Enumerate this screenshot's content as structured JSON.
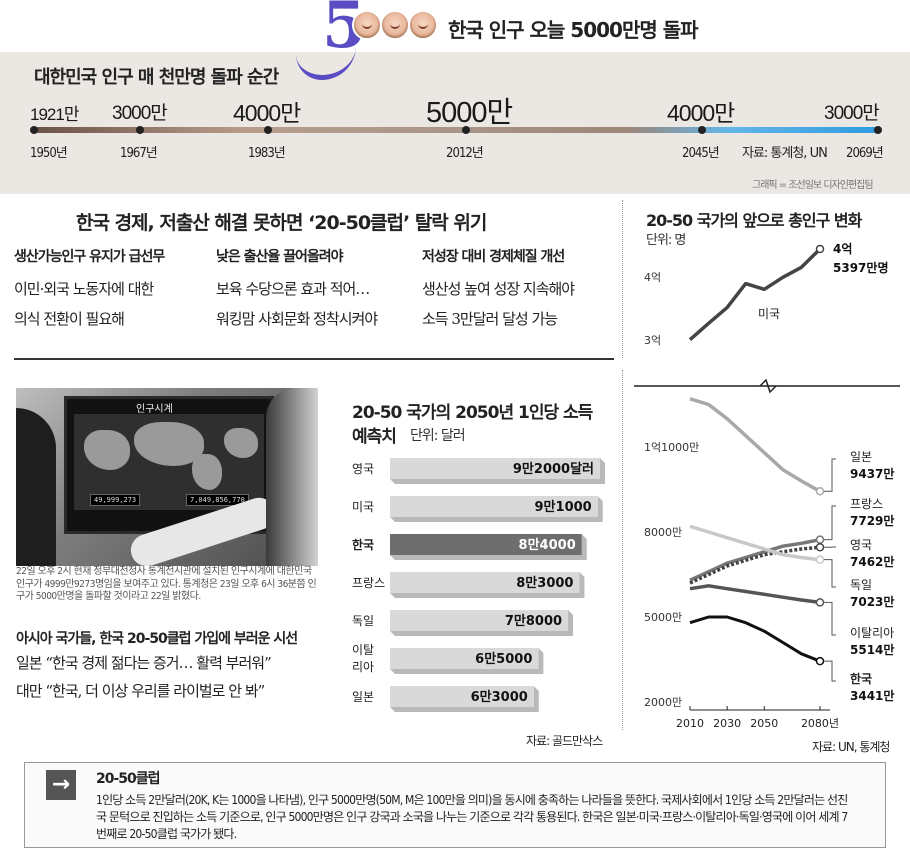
{
  "header": {
    "logo_digit": "5",
    "title": "한국 인구 오늘 5000만명 돌파"
  },
  "timeline": {
    "title": "대한민국 인구 매 천만명 돌파 순간",
    "points": [
      {
        "value": "1921만",
        "year": "1950년"
      },
      {
        "value": "3000만",
        "year": "1967년"
      },
      {
        "value": "4000만",
        "year": "1983년"
      },
      {
        "value": "5000만",
        "year": "2012년"
      },
      {
        "value": "4000만",
        "year": "2045년"
      },
      {
        "value": "3000만",
        "year": "2069년"
      }
    ],
    "source": "자료: 통계청, UN",
    "credit": "그래픽 = 조선일보 디자인편집팀"
  },
  "crisis": {
    "title": "한국 경제, 저출산 해결 못하면 ‘20-50클럽’ 탈락 위기",
    "columns": [
      {
        "head": "생산가능인구 유지가 급선무",
        "lines": [
          "이민·외국 노동자에 대한",
          "의식 전환이 필요해"
        ]
      },
      {
        "head": "낮은 출산율 끌어올려야",
        "lines": [
          "보육 수당으론 효과 적어…",
          "워킹맘 사회문화 정착시켜야"
        ]
      },
      {
        "head": "저성장 대비 경제체질 개선",
        "lines": [
          "생산성 높여 성장 지속해야",
          "소득 3만달러 달성 가능"
        ]
      }
    ]
  },
  "photo": {
    "screen_title": "인구시계",
    "counter_left": "49,999,273",
    "counter_right": "7,049,856,770",
    "caption": "22일 오후 2시 현재 정부대전청사 통계전시관에 설치된 인구시계에 대한민국 인구가 4999만9273명임을 보여주고 있다. 통계청은 23일 오후 6시 36분쯤 인구가 5000만명을 돌파할 것이라고 22일 밝혔다."
  },
  "asia": {
    "title": "아시아 국가들, 한국 20-50클럽 가입에 부러운 시선",
    "quotes": [
      "일본 “한국 경제 젊다는 증거… 활력 부러워”",
      "대만 “한국, 더 이상 우리를 라이벌로 안 봐”"
    ]
  },
  "bar_chart": {
    "title_line1": "20-50 국가의 2050년 1인당 소득",
    "title_line2": "예측치",
    "unit": "단위: 달러",
    "source": "자료: 골드만삭스",
    "highlight_color": "#6e6e6e",
    "bar_color": "#d9d9d9"
  },
  "line_chart": {
    "title": "20-50 국가의 앞으로 총인구 변화",
    "unit": "단위: 명",
    "source": "자료: UN, 통계청",
    "us_label": "미국",
    "us_end_label_1": "4억",
    "us_end_label_2": "5397만명",
    "tick_top": [
      "4억",
      "3억"
    ],
    "tick_bottom": [
      "1억1000만",
      "8000만",
      "5000만",
      "2000만"
    ],
    "x_ticks": [
      "2010",
      "2030",
      "2050",
      "2080년"
    ],
    "end_labels": [
      {
        "name": "일본",
        "value": "9437만"
      },
      {
        "name": "프랑스",
        "value": "7729만"
      },
      {
        "name": "영국",
        "value": "7462만"
      },
      {
        "name": "독일",
        "value": "7023만"
      },
      {
        "name": "이탈리아",
        "value": "5514만"
      },
      {
        "name": "한국",
        "value": "3441만"
      }
    ]
  },
  "chart_data": [
    {
      "type": "bar",
      "title": "20-50 국가의 2050년 1인당 소득 예측치",
      "ylabel": "단위: 달러",
      "categories": [
        "영국",
        "미국",
        "한국",
        "프랑스",
        "독일",
        "이탈리아",
        "일본"
      ],
      "values": [
        92000,
        91000,
        84000,
        83000,
        78000,
        65000,
        63000
      ],
      "value_labels": [
        "9만2000달러",
        "9만1000",
        "8만4000",
        "8만3000",
        "7만8000",
        "6만5000",
        "6만3000"
      ],
      "highlight": "한국"
    },
    {
      "type": "line",
      "title": "20-50 국가의 앞으로 총인구 변화",
      "ylabel": "단위: 명",
      "x": [
        2010,
        2020,
        2030,
        2040,
        2050,
        2060,
        2070,
        2080
      ],
      "series": [
        {
          "name": "미국",
          "values": [
            310000000,
            336000000,
            361000000,
            399000000,
            390000000,
            409000000,
            425000000,
            453970000
          ],
          "color": "#444444"
        },
        {
          "name": "일본",
          "values": [
            127000000,
            125000000,
            120000000,
            114000000,
            108000000,
            102000000,
            98000000,
            94370000
          ],
          "color": "#a8a8a8"
        },
        {
          "name": "프랑스",
          "values": [
            63000000,
            66000000,
            69000000,
            71000000,
            73000000,
            75000000,
            76000000,
            77290000
          ],
          "color": "#777777"
        },
        {
          "name": "영국",
          "values": [
            62000000,
            65000000,
            68000000,
            70000000,
            72000000,
            73000000,
            74000000,
            74620000
          ],
          "color": "#444444"
        },
        {
          "name": "독일",
          "values": [
            82000000,
            80000000,
            78000000,
            76000000,
            74000000,
            72000000,
            71000000,
            70230000
          ],
          "color": "#c8c8c8"
        },
        {
          "name": "이탈리아",
          "values": [
            60000000,
            61000000,
            60000000,
            59000000,
            58000000,
            57000000,
            56000000,
            55140000
          ],
          "color": "#555555"
        },
        {
          "name": "한국",
          "values": [
            48000000,
            50000000,
            50000000,
            48000000,
            45000000,
            41000000,
            37000000,
            34410000
          ],
          "color": "#111111"
        }
      ]
    }
  ],
  "info": {
    "icon": "arrow-right-icon",
    "arrow": "→",
    "title": "20-50클럽",
    "body": "1인당 소득 2만달러(20K, K는 1000을 나타냄), 인구 5000만명(50M, M은 100만을 의미)을 동시에 충족하는 나라들을 뜻한다. 국제사회에서 1인당 소득 2만달러는 선진국 문턱으로 진입하는 소득 기준으로, 인구 5000만명은 인구 강국과 소국을 나누는 기준으로 각각 통용된다. 한국은 일본·미국·프랑스·이탈리아·독일·영국에 이어 세계 7번째로 20-50클럽 국가가 됐다."
  }
}
